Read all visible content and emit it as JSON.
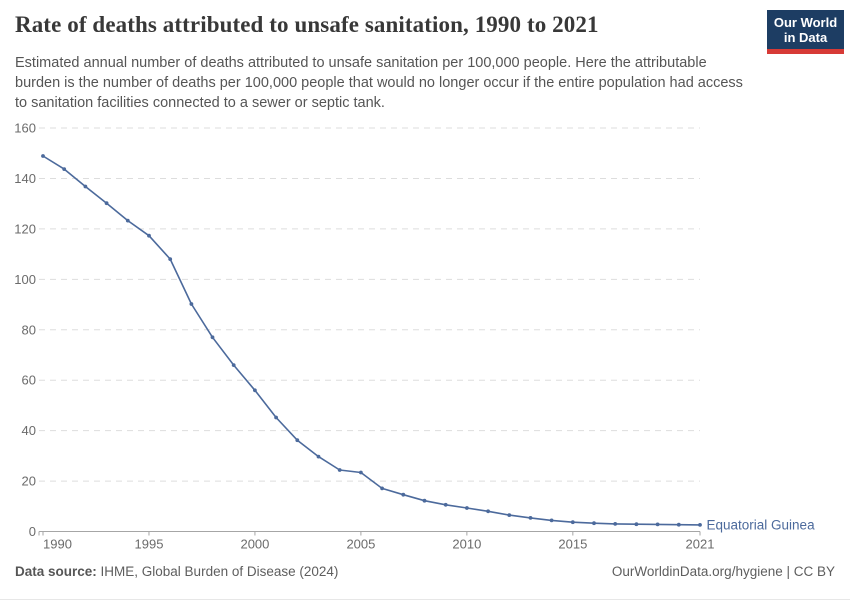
{
  "header": {
    "title": "Rate of deaths attributed to unsafe sanitation, 1990 to 2021",
    "subtitle": "Estimated annual number of deaths attributed to unsafe sanitation per 100,000 people. Here the attributable burden is the number of deaths per 100,000 people that would no longer occur if the entire population had access to sanitation facilities connected to a sewer or septic tank.",
    "logo": {
      "line1": "Our World",
      "line2": "in Data",
      "bg_color": "#1d3d63",
      "accent_color": "#d73a36"
    }
  },
  "chart_data": {
    "type": "line",
    "title": "Rate of deaths attributed to unsafe sanitation, 1990 to 2021",
    "xlabel": "",
    "ylabel": "",
    "xlim": [
      1990,
      2021
    ],
    "ylim": [
      0,
      160
    ],
    "x_ticks": [
      1990,
      1995,
      2000,
      2005,
      2010,
      2015,
      2021
    ],
    "y_ticks": [
      0,
      20,
      40,
      60,
      80,
      100,
      120,
      140,
      160
    ],
    "grid": "horizontal-dashed",
    "legend_position": "end-of-line",
    "series": [
      {
        "name": "Equatorial Guinea",
        "color": "#4C6A9C",
        "x": [
          1990,
          1991,
          1992,
          1993,
          1994,
          1995,
          1996,
          1997,
          1998,
          1999,
          2000,
          2001,
          2002,
          2003,
          2004,
          2005,
          2006,
          2007,
          2008,
          2009,
          2010,
          2011,
          2012,
          2013,
          2014,
          2015,
          2016,
          2017,
          2018,
          2019,
          2020,
          2021
        ],
        "values": [
          148.9,
          143.7,
          136.8,
          130.2,
          123.3,
          117.3,
          108.0,
          90.2,
          77.0,
          66.0,
          56.0,
          45.2,
          36.2,
          29.7,
          24.4,
          23.4,
          17.1,
          14.6,
          12.2,
          10.6,
          9.3,
          8.0,
          6.5,
          5.4,
          4.4,
          3.7,
          3.3,
          3.0,
          2.9,
          2.8,
          2.7,
          2.6
        ]
      }
    ]
  },
  "footer": {
    "source_label": "Data source:",
    "source_value": " IHME, Global Burden of Disease (2024)",
    "credit": "OurWorldinData.org/hygiene | CC BY"
  },
  "colors": {
    "grid": "#dddddd",
    "axis": "#a6a6a6",
    "tick_text": "#6b6b6b"
  }
}
